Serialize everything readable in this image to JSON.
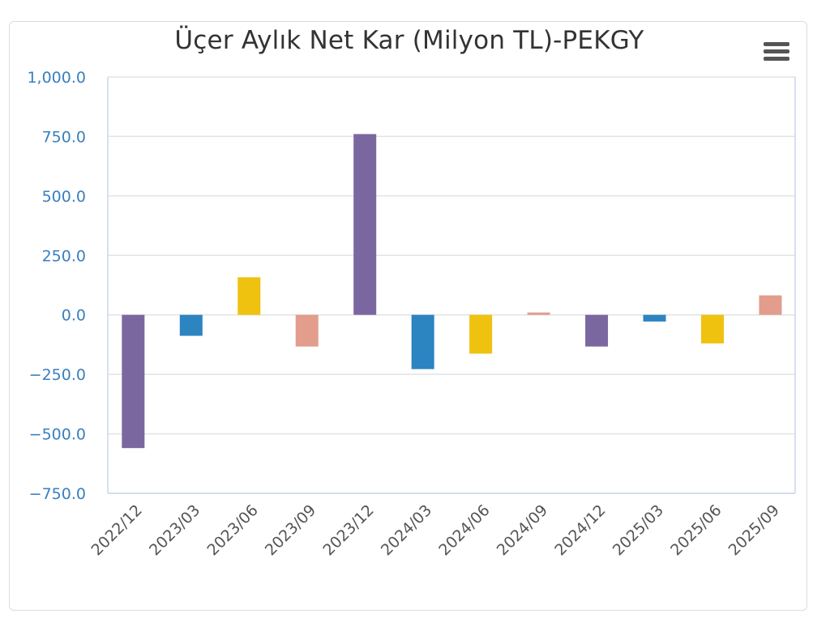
{
  "chart_data": {
    "type": "bar",
    "title": "Üçer Aylık Net Kar (Milyon TL)-PEKGY",
    "xlabel": "",
    "ylabel": "",
    "categories": [
      "2022/12",
      "2023/03",
      "2023/06",
      "2023/09",
      "2023/12",
      "2024/03",
      "2024/06",
      "2024/09",
      "2024/12",
      "2025/03",
      "2025/06",
      "2025/09"
    ],
    "values": [
      -560,
      -88,
      158,
      -133,
      760,
      -228,
      -163,
      10,
      -133,
      -28,
      -120,
      82
    ],
    "colors": [
      "#7b67a0",
      "#2c84c0",
      "#efc20f",
      "#e29d8c",
      "#7b67a0",
      "#2c84c0",
      "#efc20f",
      "#e29d8c",
      "#7b67a0",
      "#2c84c0",
      "#efc20f",
      "#e29d8c"
    ],
    "ylim": [
      -750,
      1000
    ],
    "yticks": [
      1000,
      750,
      500,
      250,
      0,
      -250,
      -500,
      -750
    ],
    "ytick_labels": [
      "1,000.0",
      "750.0",
      "500.0",
      "250.0",
      "0.0",
      "−250.0",
      "−500.0",
      "−750.0"
    ],
    "grid": true,
    "legend": "none"
  },
  "menu_icon": "hamburger-menu-icon"
}
